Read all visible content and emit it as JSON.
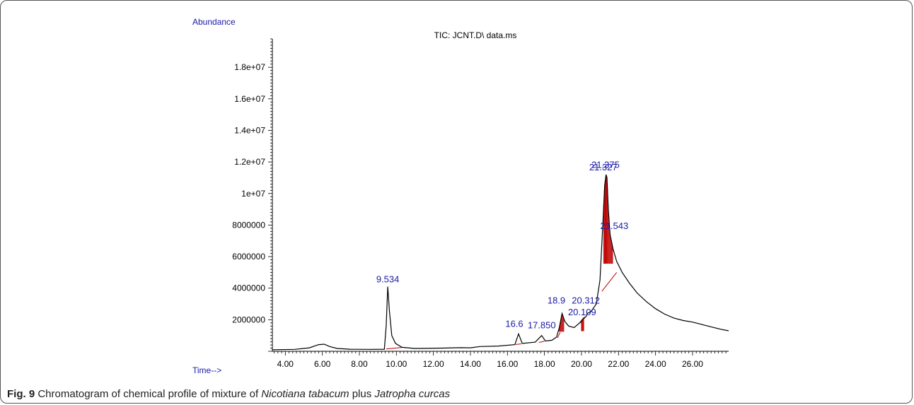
{
  "chart_data": {
    "type": "line",
    "title": "TIC: JCNT.D\\ data.ms",
    "ylabel": "Abundance",
    "xlabel": "Time-->",
    "xlim": [
      3.3,
      27.95
    ],
    "ylim": [
      0,
      19800000
    ],
    "x_ticks": [
      4,
      6,
      8,
      10,
      12,
      14,
      16,
      18,
      20,
      22,
      24,
      26
    ],
    "x_tick_labels": [
      "4.00",
      "6.00",
      "8.00",
      "10.00",
      "12.00",
      "14.00",
      "16.00",
      "18.00",
      "20.00",
      "22.00",
      "24.00",
      "26.00"
    ],
    "y_ticks": [
      2000000,
      4000000,
      6000000,
      8000000,
      10000000,
      12000000,
      14000000,
      16000000,
      18000000
    ],
    "y_tick_labels": [
      "2000000",
      "4000000",
      "6000000",
      "8000000",
      "1e+07",
      "1.2e+07",
      "1.4e+07",
      "1.6e+07",
      "1.8e+07"
    ],
    "series": [
      {
        "color": "#000000",
        "points": [
          [
            3.3,
            100000
          ],
          [
            4.5,
            120000
          ],
          [
            5.3,
            220000
          ],
          [
            5.8,
            420000
          ],
          [
            6.1,
            450000
          ],
          [
            6.4,
            300000
          ],
          [
            6.8,
            180000
          ],
          [
            7.5,
            130000
          ],
          [
            8.5,
            120000
          ],
          [
            9.35,
            130000
          ],
          [
            9.45,
            1600000
          ],
          [
            9.534,
            4100000
          ],
          [
            9.62,
            2600000
          ],
          [
            9.75,
            1000000
          ],
          [
            9.95,
            500000
          ],
          [
            10.3,
            250000
          ],
          [
            11.0,
            180000
          ],
          [
            12.5,
            200000
          ],
          [
            13.5,
            230000
          ],
          [
            14.0,
            220000
          ],
          [
            14.5,
            300000
          ],
          [
            15.5,
            330000
          ],
          [
            16.4,
            420000
          ],
          [
            16.6,
            1100000
          ],
          [
            16.8,
            500000
          ],
          [
            17.5,
            580000
          ],
          [
            17.85,
            1000000
          ],
          [
            18.05,
            650000
          ],
          [
            18.4,
            700000
          ],
          [
            18.65,
            900000
          ],
          [
            18.8,
            1500000
          ],
          [
            18.95,
            2400000
          ],
          [
            19.1,
            1900000
          ],
          [
            19.3,
            1600000
          ],
          [
            19.6,
            1500000
          ],
          [
            19.9,
            1800000
          ],
          [
            20.109,
            2100000
          ],
          [
            20.25,
            2200000
          ],
          [
            20.312,
            2400000
          ],
          [
            20.5,
            2500000
          ],
          [
            20.8,
            3000000
          ],
          [
            21.0,
            4500000
          ],
          [
            21.15,
            8000000
          ],
          [
            21.25,
            10500000
          ],
          [
            21.327,
            11200000
          ],
          [
            21.375,
            11000000
          ],
          [
            21.45,
            9000000
          ],
          [
            21.543,
            7400000
          ],
          [
            21.7,
            6500000
          ],
          [
            21.9,
            5700000
          ],
          [
            22.2,
            5000000
          ],
          [
            22.6,
            4300000
          ],
          [
            23.0,
            3700000
          ],
          [
            23.5,
            3150000
          ],
          [
            24.0,
            2700000
          ],
          [
            24.5,
            2350000
          ],
          [
            25.0,
            2100000
          ],
          [
            25.5,
            1950000
          ],
          [
            26.0,
            1850000
          ],
          [
            26.5,
            1700000
          ],
          [
            27.0,
            1550000
          ],
          [
            27.5,
            1400000
          ],
          [
            27.95,
            1300000
          ]
        ]
      }
    ],
    "peak_labels": [
      {
        "text": "9.534",
        "x": 9.534,
        "y": 4100000
      },
      {
        "text": "16.6",
        "x": 16.6,
        "y": 1100000
      },
      {
        "text": "17.850",
        "x": 17.85,
        "y": 1000000
      },
      {
        "text": "18.9",
        "x": 18.95,
        "y": 2400000
      },
      {
        "text": "20.109",
        "x": 20.109,
        "y": 2100000
      },
      {
        "text": "20.312",
        "x": 20.312,
        "y": 2400000
      },
      {
        "text": "21.327",
        "x": 21.327,
        "y": 11200000
      },
      {
        "text": "21.375",
        "x": 21.375,
        "y": 11000000
      },
      {
        "text": "21.543",
        "x": 21.543,
        "y": 7400000
      }
    ],
    "baseline_segments": [
      [
        [
          9.45,
          150000
        ],
        [
          10.4,
          250000
        ]
      ],
      [
        [
          16.45,
          430000
        ],
        [
          16.75,
          470000
        ]
      ],
      [
        [
          17.7,
          560000
        ],
        [
          18.0,
          640000
        ]
      ],
      [
        [
          18.7,
          850000
        ],
        [
          18.85,
          1200000
        ]
      ],
      [
        [
          19.95,
          1800000
        ],
        [
          20.2,
          2150000
        ]
      ],
      [
        [
          21.1,
          3800000
        ],
        [
          21.9,
          5000000
        ]
      ]
    ],
    "shaded_areas": [
      {
        "from": 18.8,
        "to": 19.05
      },
      {
        "from": 20.0,
        "to": 20.15
      },
      {
        "from": 21.2,
        "to": 21.7
      }
    ],
    "colors": {
      "trace": "#000000",
      "integration": "#c00000",
      "labels": "#1a1aa8",
      "axis_text": "#1a1aa8"
    }
  },
  "caption": {
    "fig_label": "Fig. 9",
    "text_1": " Chromatogram of chemical profile of mixture of ",
    "species_1": "Nicotiana tabacum",
    "text_2": " plus ",
    "species_2": "Jatropha curcas"
  }
}
